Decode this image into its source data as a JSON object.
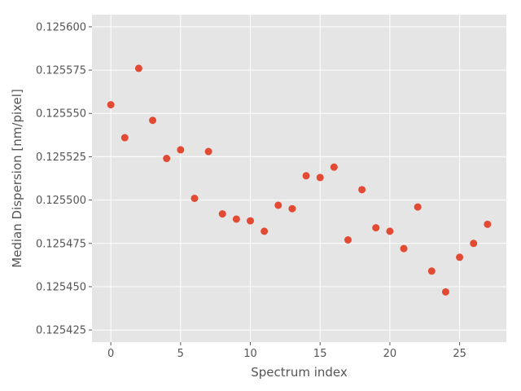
{
  "chart_data": {
    "type": "scatter",
    "title": "",
    "xlabel": "Spectrum index",
    "ylabel": "Median Dispersion [nm/pixel]",
    "xlim": [
      -1.35,
      28.35
    ],
    "ylim": [
      0.125418,
      0.125607
    ],
    "xticks": [
      0,
      5,
      10,
      15,
      20,
      25
    ],
    "yticks": [
      0.125425,
      0.12545,
      0.125475,
      0.1255,
      0.125525,
      0.12555,
      0.125575,
      0.1256
    ],
    "xtick_labels": [
      "0",
      "5",
      "10",
      "15",
      "20",
      "25"
    ],
    "ytick_labels": [
      "0.125425",
      "0.125450",
      "0.125475",
      "0.125500",
      "0.125525",
      "0.125550",
      "0.125575",
      "0.125600"
    ],
    "grid": true,
    "style": "ggplot",
    "marker_color": "#E24A33",
    "x": [
      0,
      1,
      2,
      3,
      4,
      5,
      6,
      7,
      8,
      9,
      10,
      11,
      12,
      13,
      14,
      15,
      16,
      17,
      18,
      19,
      20,
      21,
      22,
      23,
      24,
      25,
      26,
      27
    ],
    "y": [
      0.125555,
      0.125536,
      0.125576,
      0.125546,
      0.125524,
      0.125529,
      0.125501,
      0.125528,
      0.125492,
      0.125489,
      0.125488,
      0.125482,
      0.125497,
      0.125495,
      0.125514,
      0.125513,
      0.125519,
      0.125477,
      0.125506,
      0.125484,
      0.125482,
      0.125472,
      0.125496,
      0.125459,
      0.125447,
      0.125467,
      0.125475,
      0.125486
    ]
  }
}
